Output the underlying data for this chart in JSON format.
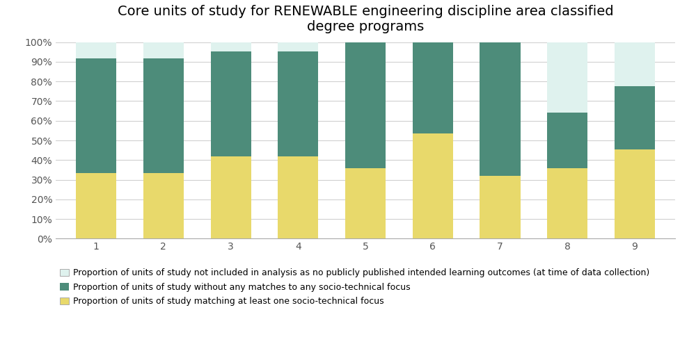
{
  "categories": [
    1,
    2,
    3,
    4,
    5,
    6,
    7,
    8,
    9
  ],
  "yellow": [
    0.333,
    0.333,
    0.417,
    0.417,
    0.357,
    0.536,
    0.321,
    0.357,
    0.455
  ],
  "teal": [
    0.583,
    0.583,
    0.535,
    0.535,
    0.643,
    0.464,
    0.679,
    0.286,
    0.321
  ],
  "mint": [
    0.084,
    0.084,
    0.048,
    0.048,
    0.0,
    0.0,
    0.0,
    0.357,
    0.224
  ],
  "color_yellow": "#e8d96b",
  "color_teal": "#4d8c7a",
  "color_mint": "#dff2ee",
  "title": "Core units of study for RENEWABLE engineering discipline area classified\ndegree programs",
  "ylabel_ticks": [
    "0%",
    "10%",
    "20%",
    "30%",
    "40%",
    "50%",
    "60%",
    "70%",
    "80%",
    "90%",
    "100%"
  ],
  "legend1": "Proportion of units of study not included in analysis as no publicly published intended learning outcomes (at time of data collection)",
  "legend2": "Proportion of units of study without any matches to any socio-technical focus",
  "legend3": "Proportion of units of study matching at least one socio-technical focus",
  "bar_width": 0.6,
  "title_fontsize": 14,
  "legend_fontsize": 9,
  "tick_fontsize": 10,
  "background_color": "#f5f5f5"
}
